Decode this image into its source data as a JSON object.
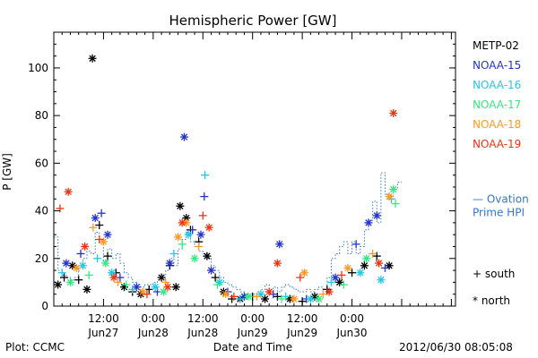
{
  "chart_data": {
    "type": "scatter",
    "title": "Hemispheric Power [GW]",
    "ylabel": "P [GW]",
    "xlabel": "Date and Time",
    "ylim": [
      0,
      115
    ],
    "xlim": [
      "2012-06-27 00:00",
      "2012-07-01 01:00"
    ],
    "yticks": [
      "0",
      "20",
      "40",
      "60",
      "80",
      "100"
    ],
    "xticks": [
      {
        "time": "2012-06-27 12:00",
        "l1": "12:00",
        "l2": "Jun27"
      },
      {
        "time": "2012-06-28 00:00",
        "l1": "0:00",
        "l2": "Jun28"
      },
      {
        "time": "2012-06-28 12:00",
        "l1": "12:00",
        "l2": "Jun28"
      },
      {
        "time": "2012-06-29 00:00",
        "l1": "0:00",
        "l2": "Jun29"
      },
      {
        "time": "2012-06-29 12:00",
        "l1": "12:00",
        "l2": "Jun29"
      },
      {
        "time": "2012-06-30 00:00",
        "l1": "0:00",
        "l2": "Jun30"
      }
    ],
    "legend": [
      {
        "name": "METP-02",
        "color": "#000000"
      },
      {
        "name": "NOAA-15",
        "color": "#2233cc"
      },
      {
        "name": "NOAA-16",
        "color": "#22c8e6"
      },
      {
        "name": "NOAA-17",
        "color": "#33e880"
      },
      {
        "name": "NOAA-18",
        "color": "#ff9922"
      },
      {
        "name": "NOAA-19",
        "color": "#ee3311"
      }
    ],
    "marker_legend": [
      {
        "symbol": "+",
        "label": "south"
      },
      {
        "symbol": "*",
        "label": "north"
      }
    ],
    "ovation_label": [
      "— Ovation",
      "Prime HPI"
    ],
    "ovation_color": "#3377cc",
    "ovation": [
      [
        "2012-06-27 00:00",
        29
      ],
      [
        "2012-06-27 01:00",
        15
      ],
      [
        "2012-06-27 02:00",
        13
      ],
      [
        "2012-06-27 03:00",
        12
      ],
      [
        "2012-06-27 04:00",
        11
      ],
      [
        "2012-06-27 05:00",
        12
      ],
      [
        "2012-06-27 06:00",
        17
      ],
      [
        "2012-06-27 07:00",
        20
      ],
      [
        "2012-06-27 08:00",
        23
      ],
      [
        "2012-06-27 09:00",
        22
      ],
      [
        "2012-06-27 10:00",
        31
      ],
      [
        "2012-06-27 11:00",
        28
      ],
      [
        "2012-06-27 12:00",
        19
      ],
      [
        "2012-06-27 13:00",
        24
      ],
      [
        "2012-06-27 14:00",
        20
      ],
      [
        "2012-06-27 15:00",
        22
      ],
      [
        "2012-06-27 16:00",
        18
      ],
      [
        "2012-06-27 17:00",
        14
      ],
      [
        "2012-06-27 18:00",
        12
      ],
      [
        "2012-06-27 19:00",
        10
      ],
      [
        "2012-06-27 20:00",
        9
      ],
      [
        "2012-06-27 21:00",
        8
      ],
      [
        "2012-06-27 22:00",
        9
      ],
      [
        "2012-06-27 23:00",
        9
      ],
      [
        "2012-06-28 00:00",
        10
      ],
      [
        "2012-06-28 01:00",
        11
      ],
      [
        "2012-06-28 02:00",
        13
      ],
      [
        "2012-06-28 03:00",
        15
      ],
      [
        "2012-06-28 04:00",
        20
      ],
      [
        "2012-06-28 05:00",
        17
      ],
      [
        "2012-06-28 06:00",
        24
      ],
      [
        "2012-06-28 07:00",
        28
      ],
      [
        "2012-06-28 08:00",
        31
      ],
      [
        "2012-06-28 09:00",
        27
      ],
      [
        "2012-06-28 10:00",
        25
      ],
      [
        "2012-06-28 11:00",
        23
      ],
      [
        "2012-06-28 12:00",
        22
      ],
      [
        "2012-06-28 13:00",
        20
      ],
      [
        "2012-06-28 14:00",
        17
      ],
      [
        "2012-06-28 15:00",
        15
      ],
      [
        "2012-06-28 16:00",
        12
      ],
      [
        "2012-06-28 17:00",
        10
      ],
      [
        "2012-06-28 18:00",
        9
      ],
      [
        "2012-06-28 19:00",
        8
      ],
      [
        "2012-06-28 20:00",
        7
      ],
      [
        "2012-06-28 21:00",
        6
      ],
      [
        "2012-06-28 22:00",
        5
      ],
      [
        "2012-06-28 23:00",
        5
      ],
      [
        "2012-06-29 00:00",
        5
      ],
      [
        "2012-06-29 01:00",
        6
      ],
      [
        "2012-06-29 02:00",
        7
      ],
      [
        "2012-06-29 03:00",
        9
      ],
      [
        "2012-06-29 04:00",
        7
      ],
      [
        "2012-06-29 05:00",
        8
      ],
      [
        "2012-06-29 06:00",
        6
      ],
      [
        "2012-06-29 07:00",
        8
      ],
      [
        "2012-06-29 08:00",
        9
      ],
      [
        "2012-06-29 09:00",
        8
      ],
      [
        "2012-06-29 10:00",
        7
      ],
      [
        "2012-06-29 11:00",
        6
      ],
      [
        "2012-06-29 12:00",
        6
      ],
      [
        "2012-06-29 13:00",
        7
      ],
      [
        "2012-06-29 14:00",
        6
      ],
      [
        "2012-06-29 15:00",
        7
      ],
      [
        "2012-06-29 16:00",
        8
      ],
      [
        "2012-06-29 17:00",
        7
      ],
      [
        "2012-06-29 18:00",
        12
      ],
      [
        "2012-06-29 19:00",
        20
      ],
      [
        "2012-06-29 20:00",
        22
      ],
      [
        "2012-06-29 21:00",
        25
      ],
      [
        "2012-06-29 22:00",
        27
      ],
      [
        "2012-06-29 23:00",
        22
      ],
      [
        "2012-06-30 00:00",
        27
      ],
      [
        "2012-06-30 01:00",
        22
      ],
      [
        "2012-06-30 02:00",
        25
      ],
      [
        "2012-06-30 03:00",
        32
      ],
      [
        "2012-06-30 04:00",
        36
      ],
      [
        "2012-06-30 05:00",
        44
      ],
      [
        "2012-06-30 06:00",
        35
      ],
      [
        "2012-06-30 07:00",
        56
      ],
      [
        "2012-06-30 08:00",
        47
      ],
      [
        "2012-06-30 09:00",
        45
      ],
      [
        "2012-06-30 10:00",
        49
      ],
      [
        "2012-06-30 11:00",
        52
      ]
    ],
    "points": [
      [
        "2012-06-27 01:00",
        9,
        "north",
        "METP-02"
      ],
      [
        "2012-06-27 02:30",
        12,
        "south",
        "METP-02"
      ],
      [
        "2012-06-27 04:30",
        17,
        "north",
        "METP-02"
      ],
      [
        "2012-06-27 06:00",
        11,
        "south",
        "METP-02"
      ],
      [
        "2012-06-27 08:00",
        7,
        "north",
        "METP-02"
      ],
      [
        "2012-06-27 09:20",
        104,
        "north",
        "METP-02"
      ],
      [
        "2012-06-27 11:00",
        34,
        "south",
        "METP-02"
      ],
      [
        "2012-06-27 13:00",
        21,
        "south",
        "METP-02"
      ],
      [
        "2012-06-27 15:00",
        14,
        "south",
        "METP-02"
      ],
      [
        "2012-06-27 17:00",
        8,
        "north",
        "METP-02"
      ],
      [
        "2012-06-27 19:00",
        6,
        "south",
        "METP-02"
      ],
      [
        "2012-06-27 21:00",
        5,
        "north",
        "METP-02"
      ],
      [
        "2012-06-27 23:00",
        7,
        "south",
        "METP-02"
      ],
      [
        "2012-06-28 02:00",
        12,
        "north",
        "METP-02"
      ],
      [
        "2012-06-28 04:00",
        17,
        "south",
        "METP-02"
      ],
      [
        "2012-06-28 05:30",
        8,
        "north",
        "METP-02"
      ],
      [
        "2012-06-28 06:30",
        42,
        "north",
        "METP-02"
      ],
      [
        "2012-06-28 08:00",
        37,
        "north",
        "METP-02"
      ],
      [
        "2012-06-28 09:00",
        32,
        "south",
        "METP-02"
      ],
      [
        "2012-06-28 11:00",
        27,
        "south",
        "METP-02"
      ],
      [
        "2012-06-28 13:00",
        21,
        "north",
        "METP-02"
      ],
      [
        "2012-06-28 15:00",
        12,
        "south",
        "METP-02"
      ],
      [
        "2012-06-28 17:00",
        6,
        "north",
        "METP-02"
      ],
      [
        "2012-06-28 19:00",
        3,
        "south",
        "METP-02"
      ],
      [
        "2012-06-28 21:00",
        3,
        "north",
        "METP-02"
      ],
      [
        "2012-06-29 00:00",
        4,
        "south",
        "METP-02"
      ],
      [
        "2012-06-29 03:00",
        3,
        "north",
        "METP-02"
      ],
      [
        "2012-06-29 06:00",
        4,
        "south",
        "METP-02"
      ],
      [
        "2012-06-29 09:00",
        3,
        "north",
        "METP-02"
      ],
      [
        "2012-06-29 12:00",
        2,
        "south",
        "METP-02"
      ],
      [
        "2012-06-29 15:00",
        4,
        "north",
        "METP-02"
      ],
      [
        "2012-06-29 18:00",
        7,
        "south",
        "METP-02"
      ],
      [
        "2012-06-29 21:00",
        10,
        "north",
        "METP-02"
      ],
      [
        "2012-06-30 00:00",
        14,
        "south",
        "METP-02"
      ],
      [
        "2012-06-30 03:00",
        17,
        "north",
        "METP-02"
      ],
      [
        "2012-06-30 06:00",
        21,
        "south",
        "METP-02"
      ],
      [
        "2012-06-30 09:00",
        17,
        "north",
        "METP-02"
      ],
      [
        "2012-06-27 03:00",
        18,
        "north",
        "NOAA-15"
      ],
      [
        "2012-06-27 06:30",
        22,
        "south",
        "NOAA-15"
      ],
      [
        "2012-06-27 10:00",
        37,
        "north",
        "NOAA-15"
      ],
      [
        "2012-06-27 11:30",
        39,
        "south",
        "NOAA-15"
      ],
      [
        "2012-06-27 13:00",
        30,
        "north",
        "NOAA-15"
      ],
      [
        "2012-06-27 16:00",
        12,
        "south",
        "NOAA-15"
      ],
      [
        "2012-06-27 20:00",
        8,
        "north",
        "NOAA-15"
      ],
      [
        "2012-06-28 01:00",
        6,
        "south",
        "NOAA-15"
      ],
      [
        "2012-06-28 04:00",
        18,
        "north",
        "NOAA-15"
      ],
      [
        "2012-06-28 07:30",
        71,
        "north",
        "NOAA-15"
      ],
      [
        "2012-06-28 09:30",
        32,
        "south",
        "NOAA-15"
      ],
      [
        "2012-06-28 11:30",
        30,
        "north",
        "NOAA-15"
      ],
      [
        "2012-06-28 12:20",
        46,
        "south",
        "NOAA-15"
      ],
      [
        "2012-06-28 14:00",
        15,
        "north",
        "NOAA-15"
      ],
      [
        "2012-06-28 18:00",
        6,
        "south",
        "NOAA-15"
      ],
      [
        "2012-06-28 22:00",
        4,
        "north",
        "NOAA-15"
      ],
      [
        "2012-06-29 05:00",
        5,
        "south",
        "NOAA-15"
      ],
      [
        "2012-06-29 06:30",
        26,
        "north",
        "NOAA-15"
      ],
      [
        "2012-06-29 13:00",
        3,
        "south",
        "NOAA-15"
      ],
      [
        "2012-06-29 20:00",
        12,
        "north",
        "NOAA-15"
      ],
      [
        "2012-06-30 01:00",
        26,
        "south",
        "NOAA-15"
      ],
      [
        "2012-06-30 04:00",
        35,
        "north",
        "NOAA-15"
      ],
      [
        "2012-06-30 06:00",
        38,
        "north",
        "NOAA-15"
      ],
      [
        "2012-06-30 08:00",
        16,
        "south",
        "NOAA-15"
      ],
      [
        "2012-06-27 02:00",
        14,
        "south",
        "NOAA-16"
      ],
      [
        "2012-06-27 07:00",
        17,
        "north",
        "NOAA-16"
      ],
      [
        "2012-06-27 10:30",
        20,
        "south",
        "NOAA-16"
      ],
      [
        "2012-06-27 14:00",
        14,
        "north",
        "NOAA-16"
      ],
      [
        "2012-06-27 19:00",
        7,
        "south",
        "NOAA-16"
      ],
      [
        "2012-06-28 00:30",
        8,
        "north",
        "NOAA-16"
      ],
      [
        "2012-06-28 05:00",
        22,
        "south",
        "NOAA-16"
      ],
      [
        "2012-06-28 08:30",
        30,
        "north",
        "NOAA-16"
      ],
      [
        "2012-06-28 12:30",
        55,
        "south",
        "NOAA-16"
      ],
      [
        "2012-06-28 16:00",
        10,
        "north",
        "NOAA-16"
      ],
      [
        "2012-06-28 21:00",
        3,
        "south",
        "NOAA-16"
      ],
      [
        "2012-06-29 02:00",
        5,
        "north",
        "NOAA-16"
      ],
      [
        "2012-06-29 08:00",
        4,
        "south",
        "NOAA-16"
      ],
      [
        "2012-06-29 14:00",
        3,
        "north",
        "NOAA-16"
      ],
      [
        "2012-06-29 19:00",
        10,
        "south",
        "NOAA-16"
      ],
      [
        "2012-06-30 02:00",
        14,
        "north",
        "NOAA-16"
      ],
      [
        "2012-06-30 07:00",
        11,
        "north",
        "NOAA-16"
      ],
      [
        "2012-06-30 09:30",
        45,
        "south",
        "NOAA-16"
      ],
      [
        "2012-06-27 04:00",
        10,
        "north",
        "NOAA-17"
      ],
      [
        "2012-06-27 08:30",
        13,
        "south",
        "NOAA-17"
      ],
      [
        "2012-06-27 12:30",
        18,
        "north",
        "NOAA-17"
      ],
      [
        "2012-06-27 17:30",
        9,
        "south",
        "NOAA-17"
      ],
      [
        "2012-06-28 02:30",
        6,
        "north",
        "NOAA-17"
      ],
      [
        "2012-06-28 07:00",
        26,
        "south",
        "NOAA-17"
      ],
      [
        "2012-06-28 10:00",
        20,
        "north",
        "NOAA-17"
      ],
      [
        "2012-06-28 15:30",
        9,
        "south",
        "NOAA-17"
      ],
      [
        "2012-06-28 23:00",
        4,
        "north",
        "NOAA-17"
      ],
      [
        "2012-06-29 07:00",
        3,
        "south",
        "NOAA-17"
      ],
      [
        "2012-06-29 16:00",
        3,
        "north",
        "NOAA-17"
      ],
      [
        "2012-06-29 22:00",
        9,
        "south",
        "NOAA-17"
      ],
      [
        "2012-06-30 03:30",
        20,
        "north",
        "NOAA-17"
      ],
      [
        "2012-06-30 10:00",
        49,
        "north",
        "NOAA-17"
      ],
      [
        "2012-06-30 10:30",
        43,
        "south",
        "NOAA-17"
      ],
      [
        "2012-06-27 05:30",
        16,
        "north",
        "NOAA-18"
      ],
      [
        "2012-06-27 09:30",
        33,
        "south",
        "NOAA-18"
      ],
      [
        "2012-06-27 12:00",
        27,
        "north",
        "NOAA-18"
      ],
      [
        "2012-06-27 15:30",
        10,
        "south",
        "NOAA-18"
      ],
      [
        "2012-06-27 21:30",
        6,
        "north",
        "NOAA-18"
      ],
      [
        "2012-06-28 03:00",
        10,
        "south",
        "NOAA-18"
      ],
      [
        "2012-06-28 06:00",
        29,
        "north",
        "NOAA-18"
      ],
      [
        "2012-06-28 08:00",
        35,
        "north",
        "NOAA-18"
      ],
      [
        "2012-06-28 11:00",
        25,
        "south",
        "NOAA-18"
      ],
      [
        "2012-06-28 17:30",
        5,
        "north",
        "NOAA-18"
      ],
      [
        "2012-06-29 01:00",
        4,
        "south",
        "NOAA-18"
      ],
      [
        "2012-06-29 10:00",
        3,
        "north",
        "NOAA-18"
      ],
      [
        "2012-06-29 12:30",
        14,
        "north",
        "NOAA-18"
      ],
      [
        "2012-06-29 17:00",
        5,
        "south",
        "NOAA-18"
      ],
      [
        "2012-06-29 23:00",
        16,
        "north",
        "NOAA-18"
      ],
      [
        "2012-06-30 05:00",
        22,
        "south",
        "NOAA-18"
      ],
      [
        "2012-06-30 09:00",
        46,
        "north",
        "NOAA-18"
      ],
      [
        "2012-06-27 03:30",
        48,
        "north",
        "NOAA-19"
      ],
      [
        "2012-06-27 01:30",
        41,
        "south",
        "NOAA-19"
      ],
      [
        "2012-06-27 07:30",
        25,
        "north",
        "NOAA-19"
      ],
      [
        "2012-06-27 11:00",
        28,
        "south",
        "NOAA-19"
      ],
      [
        "2012-06-27 14:30",
        12,
        "north",
        "NOAA-19"
      ],
      [
        "2012-06-27 22:30",
        5,
        "south",
        "NOAA-19"
      ],
      [
        "2012-06-28 03:30",
        8,
        "north",
        "NOAA-19"
      ],
      [
        "2012-06-28 07:00",
        35,
        "north",
        "NOAA-19"
      ],
      [
        "2012-06-28 12:00",
        38,
        "south",
        "NOAA-19"
      ],
      [
        "2012-06-28 13:30",
        33,
        "north",
        "NOAA-19"
      ],
      [
        "2012-06-28 19:30",
        4,
        "south",
        "NOAA-19"
      ],
      [
        "2012-06-29 04:00",
        6,
        "north",
        "NOAA-19"
      ],
      [
        "2012-06-29 06:00",
        18,
        "north",
        "NOAA-19"
      ],
      [
        "2012-06-29 11:30",
        12,
        "south",
        "NOAA-19"
      ],
      [
        "2012-06-29 18:30",
        6,
        "north",
        "NOAA-19"
      ],
      [
        "2012-06-29 21:30",
        13,
        "south",
        "NOAA-19"
      ],
      [
        "2012-06-30 06:30",
        18,
        "north",
        "NOAA-19"
      ],
      [
        "2012-06-30 10:00",
        81,
        "north",
        "NOAA-19"
      ]
    ]
  },
  "footer": {
    "credit": "Plot: CCMC",
    "timestamp": "2012/06/30 08:05:08"
  }
}
